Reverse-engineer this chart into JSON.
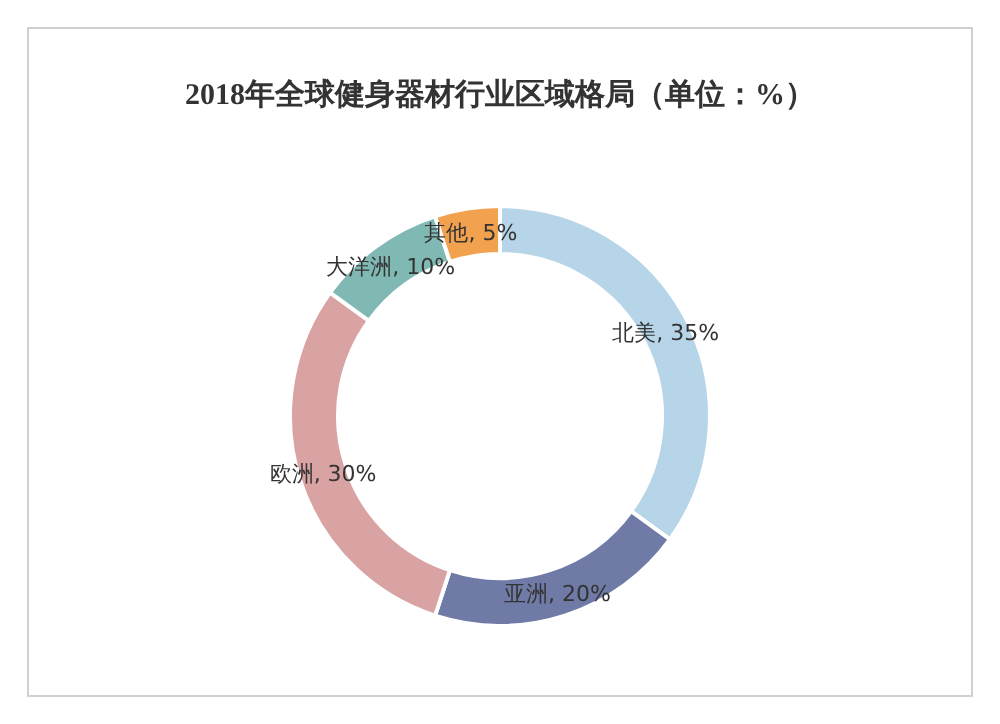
{
  "chart_data": {
    "type": "donut",
    "title": "2018年全球健身器材行业区域格局（单位：%）",
    "categories": [
      "北美",
      "亚洲",
      "欧洲",
      "大洋洲",
      "其他"
    ],
    "values": [
      35,
      20,
      30,
      10,
      5
    ],
    "value_labels": [
      "35%",
      "20%",
      "30%",
      "10%",
      "5%"
    ],
    "colors": [
      "#b7d5e8",
      "#6f7aa6",
      "#d9a3a3",
      "#80b9b4",
      "#f2a24e"
    ]
  }
}
